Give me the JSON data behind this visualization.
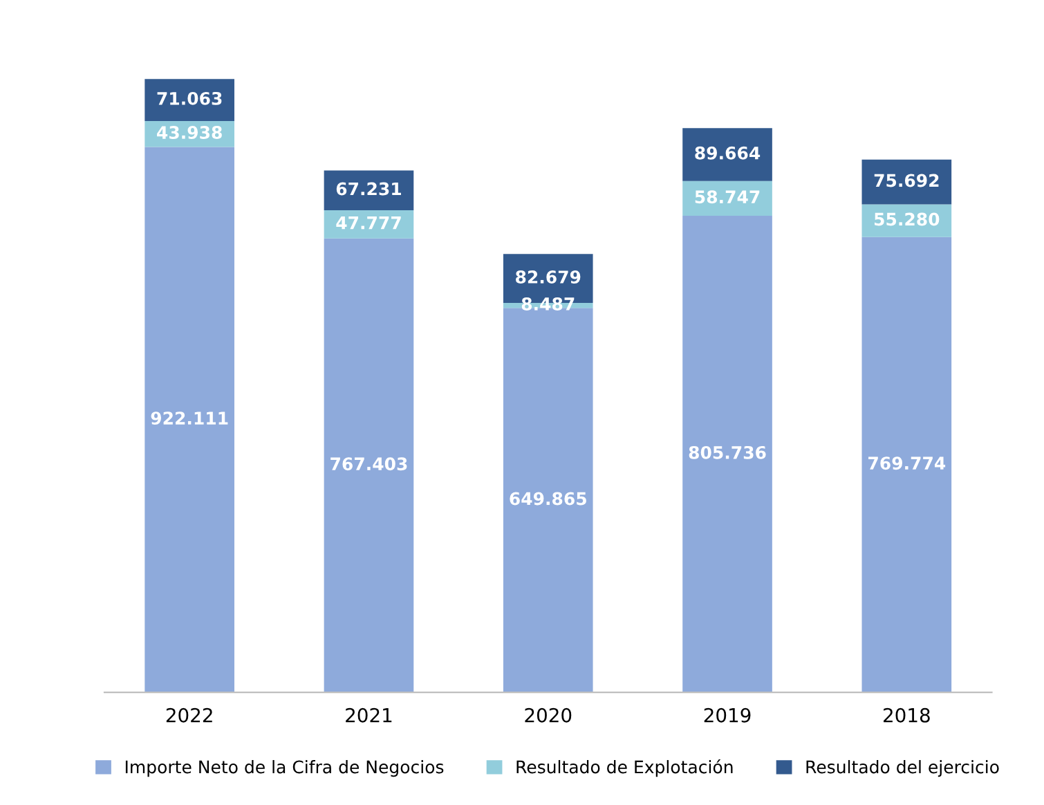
{
  "chart_data": {
    "type": "bar",
    "stacked": true,
    "legend": "bottom",
    "grid": false,
    "categories": [
      "2022",
      "2021",
      "2020",
      "2019",
      "2018"
    ],
    "series": [
      {
        "name": "Importe Neto de la Cifra de Negocios",
        "color": "#8eaadb",
        "values": [
          922111,
          767403,
          649865,
          805736,
          769774
        ],
        "value_labels": [
          "922.111",
          "767.403",
          "649.865",
          "805.736",
          "769.774"
        ]
      },
      {
        "name": "Resultado de Explotación",
        "color": "#92cddc",
        "values": [
          43938,
          47777,
          8487,
          58747,
          55280
        ],
        "value_labels": [
          "43.938",
          "47.777",
          "8.487",
          "58.747",
          "55.280"
        ]
      },
      {
        "name": "Resultado del ejercicio",
        "color": "#335a8e",
        "values": [
          71063,
          67231,
          82679,
          89664,
          75692
        ],
        "value_labels": [
          "71.063",
          "67.231",
          "82.679",
          "89.664",
          "75.692"
        ]
      }
    ]
  }
}
